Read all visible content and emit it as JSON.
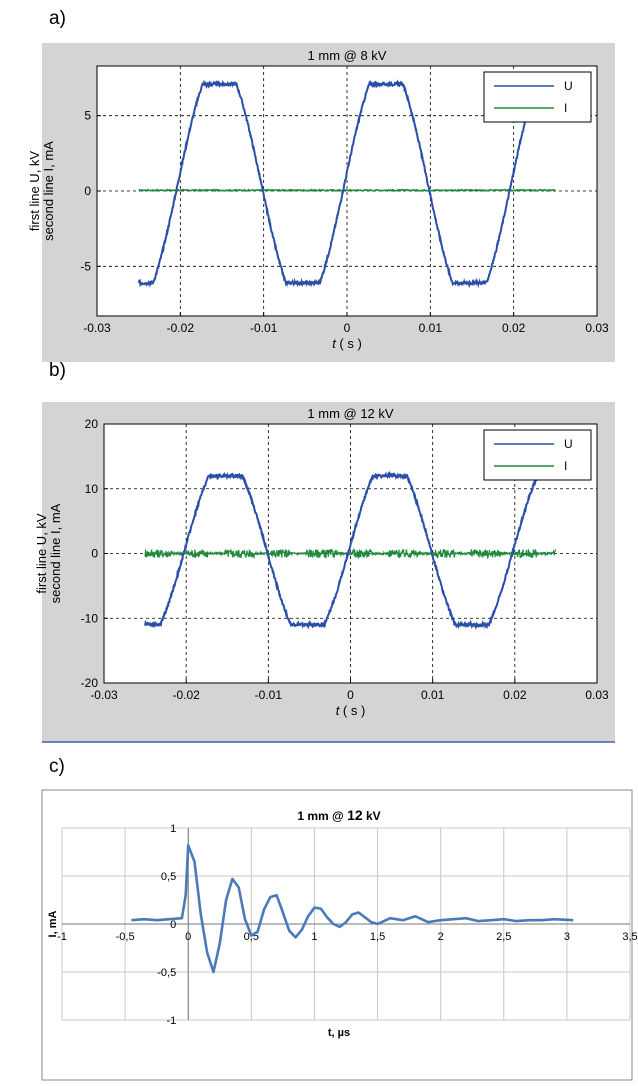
{
  "panels": [
    {
      "label": "a)"
    },
    {
      "label": "b)"
    },
    {
      "label": "c)"
    }
  ],
  "colors": {
    "figure_bg": "#d4d4d4",
    "plot_bg": "#ffffff",
    "U": "#2b4fa8",
    "I": "#1f8a3c",
    "excel_line": "#4a7bb7",
    "excel_grid": "#c8c8c8"
  },
  "chart_data": [
    {
      "type": "line",
      "title": "1 mm @ 8 kV",
      "xlabel_var": "t",
      "xlabel_unit": "( s )",
      "ylabel": [
        "first line U, kV",
        "second line I, mA"
      ],
      "xlim": [
        -0.03,
        0.03
      ],
      "ylim": [
        -8.3,
        8.3
      ],
      "xticks": [
        -0.03,
        -0.02,
        -0.01,
        0,
        0.01,
        0.02,
        0.03
      ],
      "xtick_labels": [
        "-0.03",
        "-0.02",
        "-0.01",
        "0",
        "0.01",
        "0.02",
        "0.03"
      ],
      "yticks": [
        -5,
        0,
        5
      ],
      "ytick_labels": [
        "-5",
        "0",
        "5"
      ],
      "grid": "dashed",
      "legend_position": "top-right",
      "series": [
        {
          "name": "U",
          "kind": "sine",
          "offset": 0.5,
          "amplitude": 6.6,
          "frequency_hz": 50,
          "phase_zero_s": -0.0003,
          "x_range": [
            -0.025,
            0.025
          ]
        },
        {
          "name": "I",
          "kind": "flat",
          "level": 0.05,
          "x_range": [
            -0.025,
            0.025
          ]
        }
      ]
    },
    {
      "type": "line",
      "title": "1 mm @ 12 kV",
      "xlabel_var": "t",
      "xlabel_unit": "( s )",
      "ylabel": [
        "first line U, kV",
        "second line I, mA"
      ],
      "xlim": [
        -0.03,
        0.03
      ],
      "ylim": [
        -20,
        20
      ],
      "xticks": [
        -0.03,
        -0.02,
        -0.01,
        0,
        0.01,
        0.02,
        0.03
      ],
      "xtick_labels": [
        "-0.03",
        "-0.02",
        "-0.01",
        "0",
        "0.01",
        "0.02",
        "0.03"
      ],
      "yticks": [
        -20,
        -10,
        0,
        10,
        20
      ],
      "ytick_labels": [
        "-20",
        "-10",
        "0",
        "10",
        "20"
      ],
      "grid": "dashed",
      "legend_position": "top-right",
      "series": [
        {
          "name": "U",
          "kind": "sine",
          "offset": 0.5,
          "amplitude": 11.5,
          "frequency_hz": 50,
          "phase_zero_s": -0.0002,
          "x_range": [
            -0.025,
            0.025
          ]
        },
        {
          "name": "I",
          "kind": "bursts",
          "level": 0.0,
          "x_range": [
            -0.025,
            0.025
          ]
        }
      ]
    },
    {
      "type": "line",
      "title_parts": [
        "1 mm @ ",
        "12",
        " kV"
      ],
      "xlabel": "t, µs",
      "ylabel": "I, mA",
      "xlim": [
        -1,
        3.5
      ],
      "ylim": [
        -1,
        1
      ],
      "xticks": [
        -1,
        -0.5,
        0,
        0.5,
        1,
        1.5,
        2,
        2.5,
        3,
        3.5
      ],
      "xtick_labels": [
        "-1",
        "-0,5",
        "0",
        "0,5",
        "1",
        "1,5",
        "2",
        "2,5",
        "3",
        "3,5"
      ],
      "yticks": [
        -1,
        -0.5,
        0,
        0.5,
        1
      ],
      "ytick_labels": [
        "-1",
        "-0,5",
        "0",
        "0,5",
        "1"
      ],
      "grid": "solid",
      "series": [
        {
          "name": "",
          "x": [
            -0.45,
            -0.35,
            -0.25,
            -0.15,
            -0.05,
            -0.02,
            0.0,
            0.05,
            0.1,
            0.15,
            0.2,
            0.25,
            0.3,
            0.35,
            0.4,
            0.45,
            0.5,
            0.55,
            0.6,
            0.65,
            0.7,
            0.75,
            0.8,
            0.85,
            0.9,
            0.95,
            1.0,
            1.05,
            1.1,
            1.15,
            1.2,
            1.25,
            1.3,
            1.35,
            1.4,
            1.45,
            1.5,
            1.6,
            1.7,
            1.8,
            1.9,
            2.0,
            2.1,
            2.2,
            2.3,
            2.4,
            2.5,
            2.6,
            2.7,
            2.8,
            2.9,
            3.05
          ],
          "y": [
            0.04,
            0.05,
            0.04,
            0.05,
            0.06,
            0.3,
            0.82,
            0.65,
            0.1,
            -0.3,
            -0.5,
            -0.2,
            0.25,
            0.47,
            0.38,
            0.05,
            -0.12,
            -0.08,
            0.15,
            0.28,
            0.3,
            0.12,
            -0.07,
            -0.14,
            -0.06,
            0.08,
            0.17,
            0.16,
            0.07,
            0.0,
            -0.03,
            0.02,
            0.1,
            0.12,
            0.07,
            0.02,
            0.0,
            0.06,
            0.04,
            0.08,
            0.02,
            0.04,
            0.05,
            0.06,
            0.03,
            0.04,
            0.05,
            0.03,
            0.04,
            0.04,
            0.05,
            0.04
          ]
        }
      ]
    }
  ]
}
